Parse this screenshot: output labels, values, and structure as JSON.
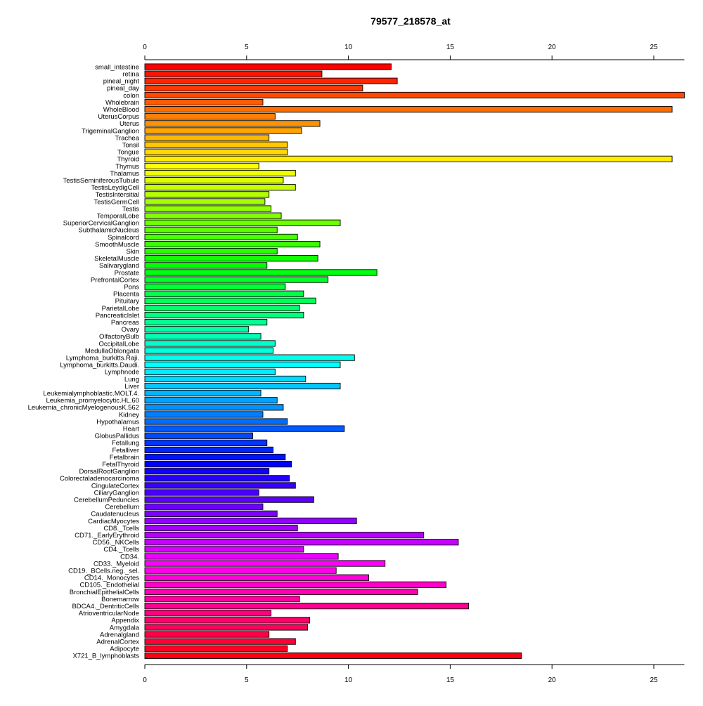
{
  "chart_data": {
    "type": "bar",
    "orientation": "horizontal",
    "title": "79577_218578_at",
    "xlabel": "",
    "ylabel": "",
    "xlim": [
      0,
      26.5
    ],
    "xticks": [
      0,
      5,
      10,
      15,
      20,
      25
    ],
    "grid": false,
    "legend": "none",
    "categories": [
      "small_intestine",
      "retina",
      "pineal_night",
      "pineal_day",
      "colon",
      "Wholebrain",
      "WholeBlood",
      "UterusCorpus",
      "Uterus",
      "TrigeminalGanglion",
      "Trachea",
      "Tonsil",
      "Tongue",
      "Thyroid",
      "Thymus",
      "Thalamus",
      "TestisSeminiferousTubule",
      "TestisLeydigCell",
      "TestisIntersitial",
      "TestisGermCell",
      "Testis",
      "TemporalLobe",
      "SuperiorCervicalGanglion",
      "SubthalamicNucleus",
      "Spinalcord",
      "SmoothMuscle",
      "Skin",
      "SkeletalMuscle",
      "Salivarygland",
      "Prostate",
      "PrefrontalCortex",
      "Pons",
      "Placenta",
      "Pituitary",
      "ParietalLobe",
      "PancreaticIslet",
      "Pancreas",
      "Ovary",
      "OlfactoryBulb",
      "OccipitalLobe",
      "MedullaOblongata",
      "Lymphoma_burkitts.Raji.",
      "Lymphoma_burkitts.Daudi.",
      "Lymphnode",
      "Lung",
      "Liver",
      "Leukemialymphoblastic.MOLT.4.",
      "Leukemia_promyelocytic.HL.60",
      "Leukemia_chronicMyelogenousK.562",
      "Kidney",
      "Hypothalamus",
      "Heart",
      "GlobusPallidus",
      "Fetallung",
      "Fetalliver",
      "Fetalbrain",
      "FetalThyroid",
      "DorsalRootGanglion",
      "Colorectaladenocarcinoma",
      "CingulateCortex",
      "CiliaryGanglion",
      "CerebellumPeduncles",
      "Cerebellum",
      "Caudatenucleus",
      "CardiacMyocytes",
      "CD8._Tcells",
      "CD71._EarlyErythroid",
      "CD56._NKCells",
      "CD4._Tcells",
      "CD34.",
      "CD33._Myeloid",
      "CD19._BCells.neg._sel.",
      "CD14._Monocytes",
      "CD105._Endothelial",
      "BronchialEpithelialCells",
      "Bonemarrow",
      "BDCA4._DentriticCells",
      "AtrioventricularNode",
      "Appendix",
      "Amygdala",
      "Adrenalgland",
      "AdrenalCortex",
      "Adipocyte",
      "X721_B_lymphoblasts"
    ],
    "values": [
      12.1,
      8.7,
      12.4,
      10.7,
      26.5,
      5.8,
      25.9,
      6.4,
      8.6,
      7.7,
      6.1,
      7.0,
      7.0,
      25.9,
      5.6,
      7.4,
      6.8,
      7.4,
      6.1,
      5.9,
      6.2,
      6.7,
      9.6,
      6.5,
      7.5,
      8.6,
      6.5,
      8.5,
      6.0,
      11.4,
      9.0,
      6.9,
      7.8,
      8.4,
      7.6,
      7.8,
      6.0,
      5.1,
      5.7,
      6.4,
      6.3,
      10.3,
      9.6,
      6.4,
      7.9,
      9.6,
      5.7,
      6.5,
      6.8,
      5.8,
      7.0,
      9.8,
      5.3,
      6.0,
      6.3,
      6.9,
      7.2,
      6.1,
      7.1,
      7.4,
      5.6,
      8.3,
      5.8,
      6.5,
      10.4,
      7.5,
      13.7,
      15.4,
      7.8,
      9.5,
      11.8,
      9.4,
      11.0,
      14.8,
      13.4,
      7.6,
      15.9,
      6.2,
      8.1,
      8.0,
      6.1,
      7.4,
      7.0,
      18.5
    ]
  }
}
